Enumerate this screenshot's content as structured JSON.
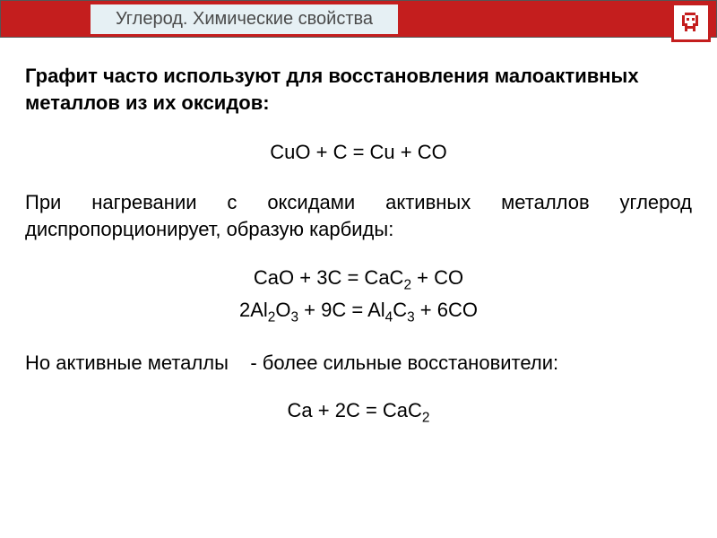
{
  "header": {
    "title": "Углерод. Химические свойства",
    "bar_color": "#c41e1e",
    "title_bg": "#e6f0f4",
    "title_color": "#4a4a4a"
  },
  "logo": {
    "border_color": "#c41e1e",
    "pixel_color": "#c41e1e"
  },
  "body": {
    "intro": "Графит часто используют для восстановления малоактивных металлов из их оксидов:",
    "equation1": "CuO + C = Cu + CO",
    "para1": "При нагревании с оксидами активных металлов углерод диспропорционирует, образую карбиды:",
    "equation2_line1_html": "CaO + 3C = CaC<sub>2</sub> + CO",
    "equation2_line2_html": "2Al<sub>2</sub>O<sub>3</sub> + 9C = Al<sub>4</sub>C<sub>3</sub> + 6CO",
    "para2_html": "Но активные металлы &nbsp;&nbsp;&nbsp;- более сильные восстановители:",
    "equation3_html": "Ca + 2C = CaC<sub>2</sub>",
    "font_size_pt": 16,
    "text_color": "#000000",
    "bg_color": "#ffffff"
  }
}
